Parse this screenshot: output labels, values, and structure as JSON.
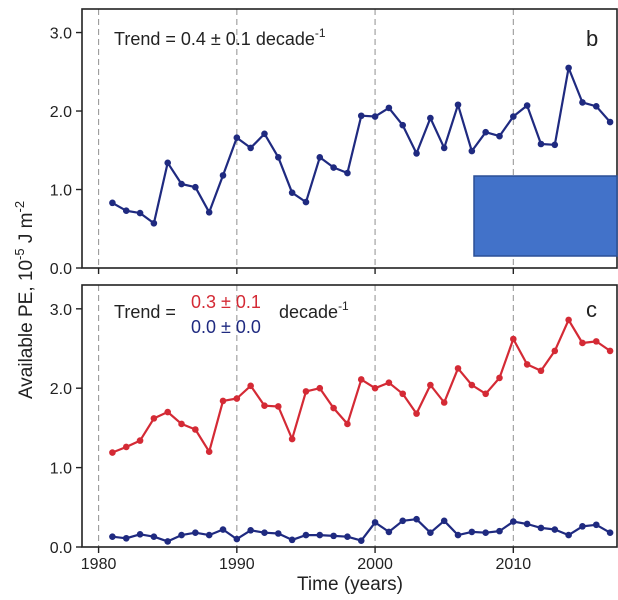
{
  "colors": {
    "navy": "#1f2a80",
    "red": "#d42a35",
    "box_fill": "#4272c9",
    "box_stroke": "#2b4f96",
    "grid": "#9a9a9a",
    "axis": "#222222"
  },
  "figure": {
    "ylabel_main": "Available PE, 10",
    "ylabel_exp": "-5",
    "ylabel_unit": " J m",
    "ylabel_unit_exp": "-2",
    "xlabel": "Time (years)",
    "x_ticks": [
      "1980",
      "1990",
      "2000",
      "2010"
    ]
  },
  "chart_data": [
    {
      "type": "line",
      "panel": "b",
      "panel_label": "b",
      "trend_prefix": "Trend = ",
      "trend_value": "0.4 ± 0.1",
      "trend_suffix": " decade",
      "trend_exp": "-1",
      "xlim": [
        1978.8,
        2017.5
      ],
      "ylim": [
        0,
        3.3
      ],
      "y_ticks": [
        0.0,
        1.0,
        2.0,
        3.0
      ],
      "y_tick_labels": [
        "0.0",
        "1.0",
        "2.0",
        "3.0"
      ],
      "x_ticks": [
        1980,
        1990,
        2000,
        2010
      ],
      "vertical_gridlines": [
        1980,
        1990,
        2000,
        2010
      ],
      "overlay_box": "filled blue rectangle, lower-right",
      "series": [
        {
          "color": "#1f2a80",
          "x": [
            1981,
            1982,
            1983,
            1984,
            1985,
            1986,
            1987,
            1988,
            1989,
            1990,
            1991,
            1992,
            1993,
            1994,
            1995,
            1996,
            1997,
            1998,
            1999,
            2000,
            2001,
            2002,
            2003,
            2004,
            2005,
            2006,
            2007,
            2008,
            2009,
            2010,
            2011,
            2012,
            2013,
            2014,
            2015,
            2016,
            2017
          ],
          "values": [
            0.83,
            0.73,
            0.7,
            0.57,
            1.34,
            1.07,
            1.03,
            0.71,
            1.18,
            1.66,
            1.53,
            1.71,
            1.41,
            0.96,
            0.84,
            1.41,
            1.28,
            1.21,
            1.94,
            1.93,
            2.04,
            1.82,
            1.46,
            1.91,
            1.53,
            2.08,
            1.49,
            1.73,
            1.68,
            1.93,
            2.07,
            1.58,
            1.57,
            2.55,
            2.11,
            2.06,
            1.86
          ]
        }
      ]
    },
    {
      "type": "line",
      "panel": "c",
      "panel_label": "c",
      "trend_prefix": "Trend = ",
      "trend_value_1": "0.3 ± 0.1",
      "trend_value_2": "0.0 ± 0.0",
      "trend_suffix": "decade",
      "trend_exp": "-1",
      "xlim": [
        1978.8,
        2017.5
      ],
      "ylim": [
        0,
        3.3
      ],
      "y_ticks": [
        0.0,
        1.0,
        2.0,
        3.0
      ],
      "y_tick_labels": [
        "0.0",
        "1.0",
        "2.0",
        "3.0"
      ],
      "x_ticks": [
        1980,
        1990,
        2000,
        2010
      ],
      "vertical_gridlines": [
        1980,
        1990,
        2000,
        2010
      ],
      "series": [
        {
          "color": "#d42a35",
          "x": [
            1981,
            1982,
            1983,
            1984,
            1985,
            1986,
            1987,
            1988,
            1989,
            1990,
            1991,
            1992,
            1993,
            1994,
            1995,
            1996,
            1997,
            1998,
            1999,
            2000,
            2001,
            2002,
            2003,
            2004,
            2005,
            2006,
            2007,
            2008,
            2009,
            2010,
            2011,
            2012,
            2013,
            2014,
            2015,
            2016,
            2017
          ],
          "values": [
            1.19,
            1.26,
            1.34,
            1.62,
            1.7,
            1.55,
            1.48,
            1.2,
            1.84,
            1.87,
            2.03,
            1.78,
            1.77,
            1.36,
            1.96,
            2.0,
            1.75,
            1.55,
            2.11,
            2.0,
            2.07,
            1.93,
            1.68,
            2.04,
            1.82,
            2.25,
            2.04,
            1.93,
            2.13,
            2.62,
            2.3,
            2.22,
            2.47,
            2.86,
            2.57,
            2.59,
            2.47
          ]
        },
        {
          "color": "#1f2a80",
          "x": [
            1981,
            1982,
            1983,
            1984,
            1985,
            1986,
            1987,
            1988,
            1989,
            1990,
            1991,
            1992,
            1993,
            1994,
            1995,
            1996,
            1997,
            1998,
            1999,
            2000,
            2001,
            2002,
            2003,
            2004,
            2005,
            2006,
            2007,
            2008,
            2009,
            2010,
            2011,
            2012,
            2013,
            2014,
            2015,
            2016,
            2017
          ],
          "values": [
            0.13,
            0.11,
            0.16,
            0.13,
            0.07,
            0.15,
            0.18,
            0.15,
            0.22,
            0.1,
            0.21,
            0.18,
            0.17,
            0.09,
            0.15,
            0.15,
            0.14,
            0.13,
            0.08,
            0.31,
            0.19,
            0.33,
            0.35,
            0.18,
            0.33,
            0.15,
            0.19,
            0.18,
            0.2,
            0.32,
            0.29,
            0.24,
            0.22,
            0.15,
            0.26,
            0.28,
            0.18
          ]
        }
      ]
    }
  ]
}
